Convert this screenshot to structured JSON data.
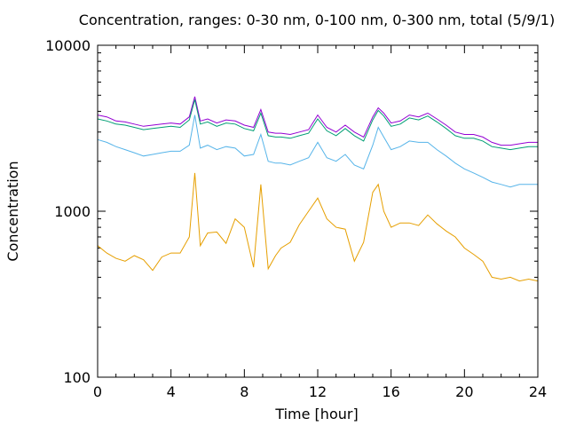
{
  "chart_data": {
    "type": "line",
    "title": "Concentration, ranges: 0-30 nm, 0-100 nm, 0-300 nm, total (5/9/1)",
    "xlabel": "Time [hour]",
    "ylabel": "Concentration",
    "xlim": [
      0,
      24
    ],
    "ylim": [
      100,
      10000
    ],
    "yscale": "log",
    "grid": false,
    "legend": "none",
    "x_ticks": [
      0,
      4,
      8,
      12,
      16,
      20,
      24
    ],
    "x_tick_labels": [
      "0",
      "4",
      "8",
      "12",
      "16",
      "20",
      "24"
    ],
    "y_ticks": [
      100,
      1000,
      10000
    ],
    "y_tick_labels": [
      "100",
      "1000",
      "10000"
    ],
    "x": [
      0,
      0.5,
      1,
      1.5,
      2,
      2.5,
      3,
      3.5,
      4,
      4.5,
      5,
      5.3,
      5.6,
      6,
      6.5,
      7,
      7.5,
      8,
      8.5,
      8.9,
      9.3,
      9.7,
      10,
      10.5,
      11,
      11.5,
      12,
      12.5,
      13,
      13.5,
      14,
      14.5,
      15,
      15.3,
      15.6,
      16,
      16.5,
      17,
      17.5,
      18,
      18.5,
      19,
      19.5,
      20,
      20.5,
      21,
      21.5,
      22,
      22.5,
      23,
      23.5,
      24
    ],
    "series": [
      {
        "color": "#9400d3",
        "values": [
          3800,
          3700,
          3500,
          3450,
          3350,
          3250,
          3300,
          3350,
          3400,
          3350,
          3700,
          4900,
          3500,
          3600,
          3400,
          3550,
          3500,
          3300,
          3200,
          4100,
          3000,
          2950,
          2950,
          2900,
          3000,
          3100,
          3800,
          3200,
          3000,
          3300,
          3000,
          2800,
          3700,
          4200,
          3900,
          3400,
          3500,
          3800,
          3700,
          3900,
          3600,
          3300,
          3000,
          2900,
          2900,
          2800,
          2600,
          2500,
          2500,
          2550,
          2600,
          2600
        ]
      },
      {
        "color": "#009e73",
        "values": [
          3600,
          3500,
          3350,
          3300,
          3200,
          3100,
          3150,
          3200,
          3250,
          3200,
          3550,
          4700,
          3350,
          3450,
          3250,
          3400,
          3350,
          3150,
          3050,
          3900,
          2850,
          2800,
          2800,
          2750,
          2850,
          2950,
          3600,
          3050,
          2850,
          3150,
          2850,
          2650,
          3550,
          4050,
          3750,
          3250,
          3350,
          3650,
          3550,
          3750,
          3450,
          3150,
          2850,
          2750,
          2750,
          2650,
          2450,
          2400,
          2350,
          2400,
          2450,
          2450
        ]
      },
      {
        "color": "#56b4e9",
        "values": [
          2700,
          2600,
          2450,
          2350,
          2250,
          2150,
          2200,
          2250,
          2300,
          2300,
          2500,
          3800,
          2400,
          2500,
          2350,
          2450,
          2400,
          2150,
          2200,
          2900,
          2000,
          1950,
          1950,
          1900,
          2000,
          2100,
          2600,
          2100,
          2000,
          2200,
          1900,
          1800,
          2500,
          3200,
          2800,
          2350,
          2450,
          2650,
          2600,
          2600,
          2350,
          2150,
          1950,
          1800,
          1700,
          1600,
          1500,
          1450,
          1400,
          1450,
          1450,
          1450
        ]
      },
      {
        "color": "#e69f00",
        "values": [
          620,
          560,
          520,
          500,
          540,
          510,
          440,
          530,
          560,
          560,
          700,
          1700,
          620,
          740,
          750,
          640,
          900,
          800,
          460,
          1450,
          450,
          540,
          600,
          650,
          830,
          1000,
          1200,
          900,
          800,
          780,
          500,
          650,
          1300,
          1450,
          1000,
          800,
          850,
          850,
          820,
          950,
          840,
          760,
          700,
          600,
          550,
          500,
          400,
          390,
          400,
          380,
          390,
          380
        ]
      }
    ]
  }
}
